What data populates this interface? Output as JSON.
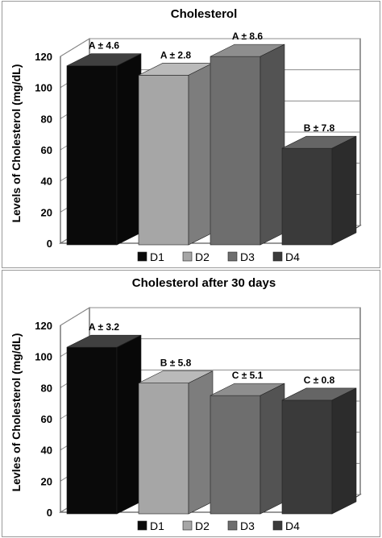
{
  "chart_data": [
    {
      "type": "bar",
      "title": "Cholesterol",
      "ylabel": "Levels of Cholesterol (mg/dL)",
      "xlabel": "",
      "ylim": [
        0,
        120
      ],
      "yticks": [
        "0",
        "20",
        "40",
        "60",
        "80",
        "100",
        "120"
      ],
      "categories": [
        "D1",
        "D2",
        "D3",
        "D4"
      ],
      "values": [
        116,
        110,
        122,
        63
      ],
      "data_labels": [
        "A ± 4.6",
        "A ± 2.8",
        "A ± 8.6",
        "B ± 7.8"
      ],
      "colors": [
        "#0a0a0a",
        "#a6a6a6",
        "#6e6e6e",
        "#3a3a3a"
      ],
      "legend": "bottom",
      "grid": true
    },
    {
      "type": "bar",
      "title": "Cholesterol after 30 days",
      "ylabel": "Levles of Cholesterol (mg/dL)",
      "xlabel": "",
      "ylim": [
        0,
        120
      ],
      "yticks": [
        "0",
        "20",
        "40",
        "60",
        "80",
        "100",
        "120"
      ],
      "categories": [
        "D1",
        "D2",
        "D3",
        "D4"
      ],
      "values": [
        108,
        85,
        77,
        74
      ],
      "data_labels": [
        "A ± 3.2",
        "B ± 5.8",
        "C ± 5.1",
        "C ± 0.8"
      ],
      "colors": [
        "#0a0a0a",
        "#a6a6a6",
        "#6e6e6e",
        "#3a3a3a"
      ],
      "legend": "bottom",
      "grid": true
    }
  ]
}
